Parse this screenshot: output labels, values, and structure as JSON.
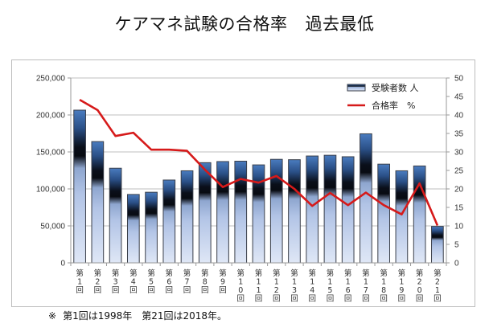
{
  "title": {
    "main": "ケアマネ試験の合格率",
    "sub": "過去最低"
  },
  "footnote": {
    "mark": "※",
    "text": "第1回は1998年　第21回は2018年。"
  },
  "colors": {
    "bar_dark": "#0a0f1a",
    "bar_top": "#3b6aa8",
    "bar_light": "#dbe4f5",
    "bar_border": "#3a3f4a",
    "line": "#d61a1a",
    "grid": "#bfbfbf"
  },
  "chart_data": {
    "type": "bar+line",
    "title": "ケアマネ試験の合格率　過去最低",
    "categories": [
      "第1回",
      "第2回",
      "第3回",
      "第4回",
      "第5回",
      "第6回",
      "第7回",
      "第8回",
      "第9回",
      "第10回",
      "第11回",
      "第12回",
      "第13回",
      "第14回",
      "第15回",
      "第16回",
      "第17回",
      "第18回",
      "第19回",
      "第20回",
      "第21回"
    ],
    "category_chars": [
      [
        "第",
        "1",
        "回"
      ],
      [
        "第",
        "2",
        "回"
      ],
      [
        "第",
        "3",
        "回"
      ],
      [
        "第",
        "4",
        "回"
      ],
      [
        "第",
        "5",
        "回"
      ],
      [
        "第",
        "6",
        "回"
      ],
      [
        "第",
        "7",
        "回"
      ],
      [
        "第",
        "8",
        "回"
      ],
      [
        "第",
        "9",
        "回"
      ],
      [
        "第",
        "1",
        "0",
        "回"
      ],
      [
        "第",
        "1",
        "1",
        "回"
      ],
      [
        "第",
        "1",
        "2",
        "回"
      ],
      [
        "第",
        "1",
        "3",
        "回"
      ],
      [
        "第",
        "1",
        "4",
        "回"
      ],
      [
        "第",
        "1",
        "5",
        "回"
      ],
      [
        "第",
        "1",
        "6",
        "回"
      ],
      [
        "第",
        "1",
        "7",
        "回"
      ],
      [
        "第",
        "1",
        "8",
        "回"
      ],
      [
        "第",
        "1",
        "9",
        "回"
      ],
      [
        "第",
        "2",
        "0",
        "回"
      ],
      [
        "第",
        "2",
        "1",
        "回"
      ]
    ],
    "series": [
      {
        "name": "受験者数 人",
        "type": "bar",
        "axis": "left",
        "values": [
          206500,
          164000,
          128000,
          92500,
          95500,
          112000,
          124500,
          135500,
          137000,
          137500,
          132500,
          140000,
          139500,
          144500,
          145500,
          143500,
          174500,
          133500,
          124500,
          131000,
          49300
        ]
      },
      {
        "name": "合格率　%",
        "type": "line",
        "axis": "right",
        "values": [
          44.1,
          41.3,
          34.3,
          35.2,
          30.6,
          30.6,
          30.3,
          25.2,
          20.5,
          22.7,
          21.7,
          23.5,
          20.0,
          15.4,
          18.9,
          15.6,
          19.0,
          15.6,
          13.1,
          21.5,
          10.1
        ]
      }
    ],
    "y_left": {
      "label": "",
      "range": [
        0,
        250000
      ],
      "ticks": [
        0,
        50000,
        100000,
        150000,
        200000,
        250000
      ],
      "tick_labels": [
        "0",
        "50,000",
        "100,000",
        "150,000",
        "200,000",
        "250,000"
      ]
    },
    "y_right": {
      "label": "",
      "range": [
        0,
        50
      ],
      "ticks": [
        0,
        5,
        10,
        15,
        20,
        25,
        30,
        35,
        40,
        45,
        50
      ],
      "tick_labels": [
        "0",
        "5",
        "10",
        "15",
        "20",
        "25",
        "30",
        "35",
        "40",
        "45",
        "50"
      ]
    },
    "grid": "horizontal",
    "legend": {
      "position": "top-right",
      "entries": [
        "受験者数 人",
        "合格率　%"
      ]
    }
  }
}
